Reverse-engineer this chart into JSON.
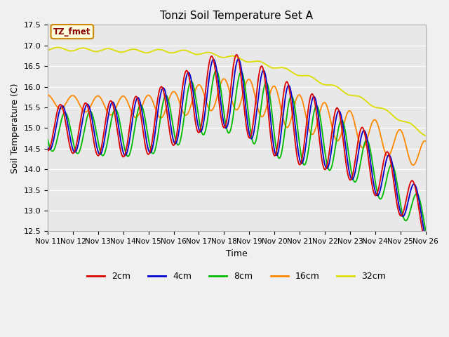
{
  "title": "Tonzi Soil Temperature Set A",
  "xlabel": "Time",
  "ylabel": "Soil Temperature (C)",
  "ylim": [
    12.5,
    17.5
  ],
  "xlim": [
    0,
    15
  ],
  "x_tick_labels": [
    "Nov 11",
    "Nov 12",
    "Nov 13",
    "Nov 14",
    "Nov 15",
    "Nov 16",
    "Nov 17",
    "Nov 18",
    "Nov 19",
    "Nov 20",
    "Nov 21",
    "Nov 22",
    "Nov 23",
    "Nov 24",
    "Nov 25",
    "Nov 26"
  ],
  "colors": {
    "2cm": "#dd0000",
    "4cm": "#0000cc",
    "8cm": "#00bb00",
    "16cm": "#ff8800",
    "32cm": "#dddd00"
  },
  "legend_label": "TZ_fmet",
  "fig_bg": "#f0f0f0",
  "ax_bg": "#e8e8e8"
}
